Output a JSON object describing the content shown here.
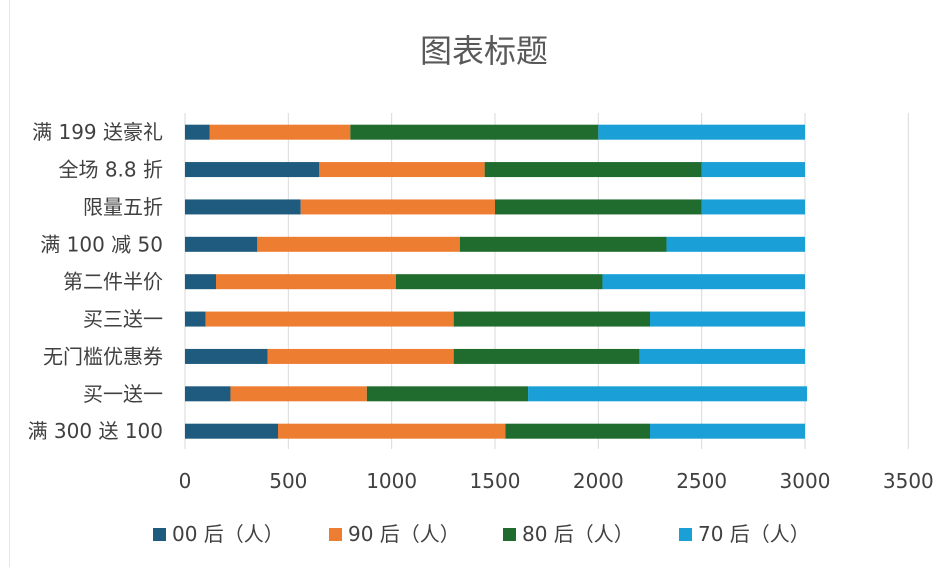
{
  "chart_data": {
    "type": "bar",
    "orientation": "horizontal",
    "stacked": true,
    "title": "图表标题",
    "categories": [
      "满 199 送豪礼",
      "全场 8.8 折",
      "限量五折",
      "满 100 减 50",
      "第二件半价",
      "买三送一",
      "无门槛优惠券",
      "买一送一",
      "满 300 送 100"
    ],
    "series": [
      {
        "name": "00 后（人）",
        "color": "#1f5b7e",
        "values": [
          120,
          650,
          560,
          350,
          150,
          100,
          400,
          220,
          450
        ]
      },
      {
        "name": "90 后（人）",
        "color": "#ed7d31",
        "values": [
          680,
          800,
          940,
          980,
          870,
          1200,
          900,
          660,
          1100
        ]
      },
      {
        "name": "80 后（人）",
        "color": "#206c2e",
        "values": [
          1200,
          1050,
          1000,
          1000,
          1000,
          950,
          900,
          780,
          700
        ]
      },
      {
        "name": "70 后（人）",
        "color": "#1aa0d6",
        "values": [
          1000,
          500,
          500,
          670,
          980,
          750,
          800,
          1350,
          750
        ]
      }
    ],
    "xlim": [
      0,
      3500
    ],
    "xticks": [
      0,
      500,
      1000,
      1500,
      2000,
      2500,
      3000,
      3500
    ],
    "grid": true,
    "legend_position": "bottom"
  }
}
